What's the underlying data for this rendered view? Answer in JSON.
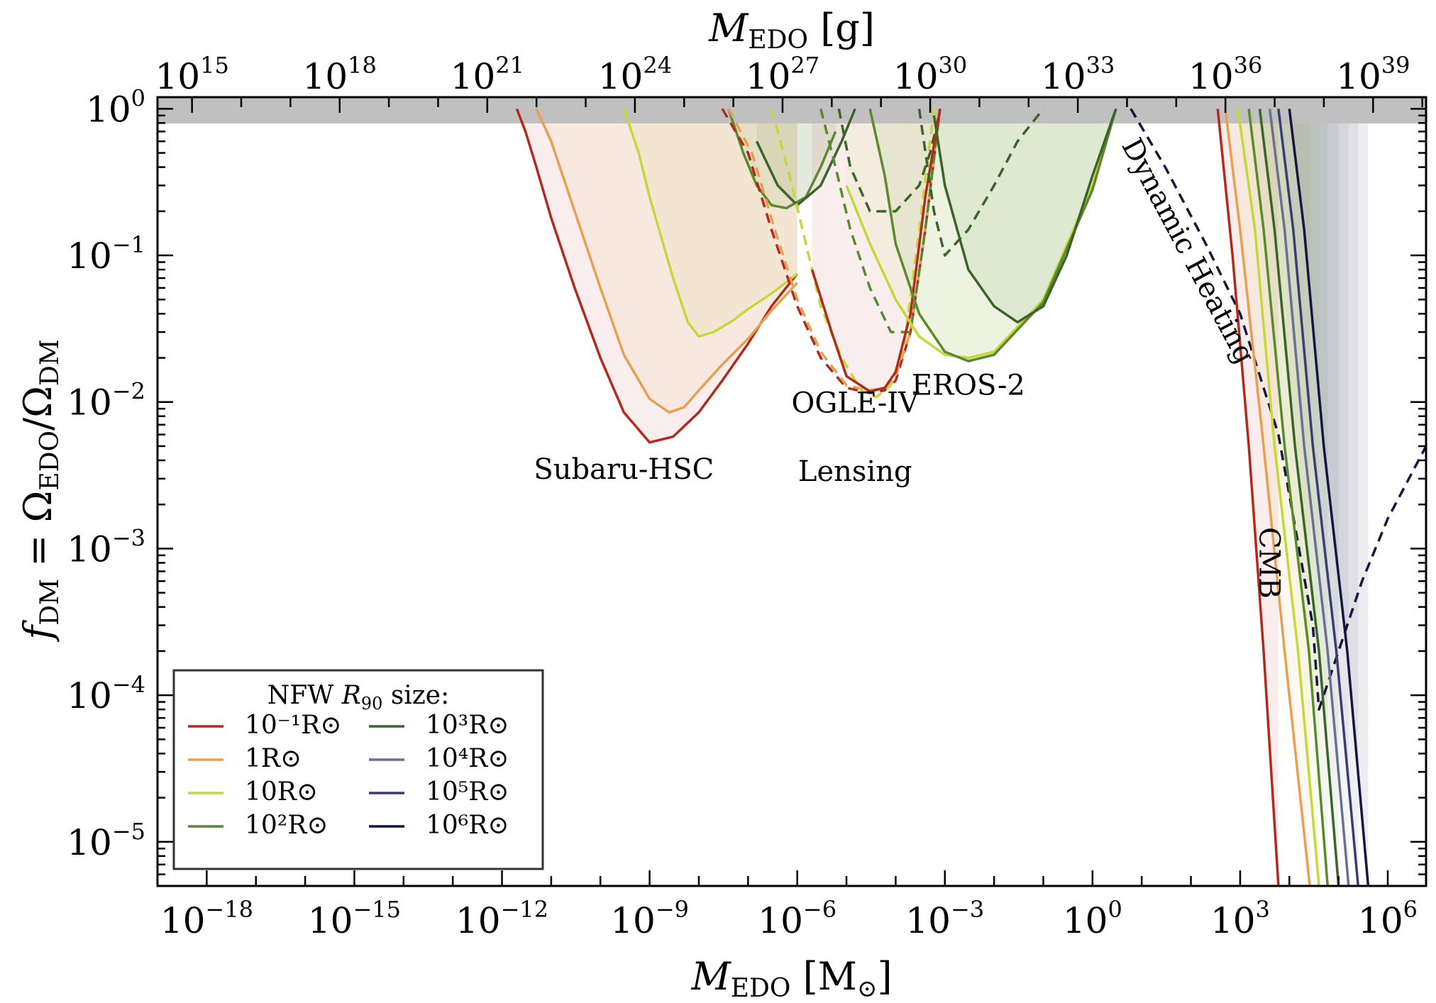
{
  "chart_data": {
    "type": "line",
    "title": "",
    "xlabel": "M_EDO [M_⊙]",
    "ylabel": "f_DM = Ω_EDO/Ω_DM",
    "top_xlabel": "M_EDO [g]",
    "xscale": "log",
    "yscale": "log",
    "xlim": [
      1e-19,
      6000000.0
    ],
    "ylim": [
      5e-06,
      1.2
    ],
    "x_ticks": [
      1e-18,
      1e-15,
      1e-12,
      1e-09,
      1e-06,
      0.001,
      1,
      1000.0,
      1000000.0
    ],
    "x_tick_labels": [
      {
        "base": "10",
        "exp": "−18"
      },
      {
        "base": "10",
        "exp": "−15"
      },
      {
        "base": "10",
        "exp": "−12"
      },
      {
        "base": "10",
        "exp": "−9"
      },
      {
        "base": "10",
        "exp": "−6"
      },
      {
        "base": "10",
        "exp": "−3"
      },
      {
        "base": "10",
        "exp": "0"
      },
      {
        "base": "10",
        "exp": "3"
      },
      {
        "base": "10",
        "exp": "6"
      }
    ],
    "top_x_ticks_grams": [
      1000000000000000.0,
      1e+18,
      1e+21,
      1e+24,
      1e+27,
      1e+30,
      1e+33,
      1e+36,
      1e+39
    ],
    "top_x_tick_labels": [
      {
        "base": "10",
        "exp": "15"
      },
      {
        "base": "10",
        "exp": "18"
      },
      {
        "base": "10",
        "exp": "21"
      },
      {
        "base": "10",
        "exp": "24"
      },
      {
        "base": "10",
        "exp": "27"
      },
      {
        "base": "10",
        "exp": "30"
      },
      {
        "base": "10",
        "exp": "33"
      },
      {
        "base": "10",
        "exp": "36"
      },
      {
        "base": "10",
        "exp": "39"
      }
    ],
    "y_ticks": [
      1e-05,
      0.0001,
      0.001,
      0.01,
      0.1,
      1
    ],
    "y_tick_labels": [
      {
        "base": "10",
        "exp": "−5"
      },
      {
        "base": "10",
        "exp": "−4"
      },
      {
        "base": "10",
        "exp": "−3"
      },
      {
        "base": "10",
        "exp": "−2"
      },
      {
        "base": "10",
        "exp": "−1"
      },
      {
        "base": "10",
        "exp": "0"
      }
    ],
    "grid": false,
    "legend_position": "bottom-left",
    "legend": {
      "title": "NFW R90 size:",
      "entries": [
        {
          "label": "10⁻¹R⊙",
          "color": "#b22a1c"
        },
        {
          "label": "1R⊙",
          "color": "#e8a050"
        },
        {
          "label": "10R⊙",
          "color": "#c5d83a"
        },
        {
          "label": "10²R⊙",
          "color": "#5a8a2c"
        },
        {
          "label": "10³R⊙",
          "color": "#3c6428"
        },
        {
          "label": "10⁴R⊙",
          "color": "#6a7090"
        },
        {
          "label": "10⁵R⊙",
          "color": "#3a3e70"
        },
        {
          "label": "10⁶R⊙",
          "color": "#151540"
        }
      ]
    },
    "annotations": [
      {
        "text": "Subaru-HSC",
        "x": 3e-10,
        "y": 0.003
      },
      {
        "text": "OGLE-IV",
        "x": 1.5e-05,
        "y": 0.0085
      },
      {
        "text": "Lensing",
        "x": 1.5e-05,
        "y": 0.0029
      },
      {
        "text": "EROS-2",
        "x": 0.003,
        "y": 0.0112
      },
      {
        "text": "Dynamic Heating",
        "x": 60,
        "y": 0.1,
        "rotation": 62
      },
      {
        "text": "CMB",
        "x": 2500.0,
        "y": 0.0008,
        "rotation": 90
      }
    ],
    "series": [
      {
        "name": "Subaru-HSC 10⁻¹R⊙",
        "style": "solid",
        "color": "#b22a1c",
        "x": [
          2e-12,
          3e-12,
          5e-12,
          1e-11,
          3e-11,
          1e-10,
          3e-10,
          1e-09,
          3e-09,
          1e-08,
          3e-08,
          1e-07,
          3e-07,
          1e-06
        ],
        "y": [
          1.0,
          0.7,
          0.4,
          0.18,
          0.06,
          0.02,
          0.0085,
          0.0053,
          0.0058,
          0.0085,
          0.014,
          0.025,
          0.045,
          0.075
        ]
      },
      {
        "name": "Subaru-HSC 1R⊙",
        "style": "solid",
        "color": "#e8a050",
        "x": [
          5e-12,
          1e-11,
          3e-11,
          1e-10,
          3e-10,
          1e-09,
          2.5e-09,
          5e-09,
          1e-08,
          3e-08,
          1e-07,
          3e-07,
          1e-06
        ],
        "y": [
          1.0,
          0.6,
          0.2,
          0.06,
          0.021,
          0.0105,
          0.0085,
          0.0092,
          0.012,
          0.018,
          0.027,
          0.042,
          0.065
        ]
      },
      {
        "name": "Subaru-HSC 10R⊙",
        "style": "solid",
        "color": "#c5d83a",
        "x": [
          3e-10,
          6e-10,
          1e-09,
          3e-09,
          6e-09,
          1e-08,
          2e-08,
          5e-08,
          1e-07,
          3e-07,
          1e-06
        ],
        "y": [
          1.0,
          0.5,
          0.25,
          0.07,
          0.035,
          0.028,
          0.03,
          0.036,
          0.043,
          0.055,
          0.075
        ]
      },
      {
        "name": "Subaru-HSC 10²R⊙",
        "style": "solid",
        "color": "#5a8a2c",
        "x": [
          4e-08,
          8e-08,
          1.5e-07,
          3e-07,
          6e-07,
          1.5e-06,
          3e-06,
          6e-06
        ],
        "y": [
          1.0,
          0.5,
          0.3,
          0.22,
          0.21,
          0.25,
          0.4,
          0.7
        ]
      },
      {
        "name": "Subaru-HSC 10³R⊙",
        "style": "solid",
        "color": "#3c6428",
        "x": [
          1.5e-07,
          4e-07,
          1e-06,
          3e-06,
          8e-06,
          1.5e-05
        ],
        "y": [
          0.6,
          0.3,
          0.22,
          0.3,
          0.6,
          1.0
        ]
      },
      {
        "name": "OGLE-IV 10⁻¹R⊙",
        "style": "dashed",
        "color": "#b22a1c",
        "x": [
          3e-08,
          1e-07,
          3e-07,
          1e-06,
          3e-06,
          1e-05,
          3e-05,
          6e-05,
          0.0001,
          0.0002,
          0.0004,
          0.0008
        ],
        "y": [
          1.0,
          0.5,
          0.15,
          0.045,
          0.02,
          0.0125,
          0.0115,
          0.012,
          0.014,
          0.03,
          0.15,
          1.0
        ]
      },
      {
        "name": "OGLE-IV 1R⊙",
        "style": "dashed",
        "color": "#e8a050",
        "x": [
          4e-08,
          1.2e-07,
          3.5e-07,
          1e-06,
          3e-06,
          1e-05,
          3e-05,
          6e-05,
          0.0001,
          0.0002,
          0.0004,
          0.0008
        ],
        "y": [
          1.0,
          0.5,
          0.15,
          0.05,
          0.022,
          0.013,
          0.012,
          0.0125,
          0.015,
          0.03,
          0.15,
          1.0
        ]
      },
      {
        "name": "OGLE-IV 10R⊙",
        "style": "dashed",
        "color": "#c5d83a",
        "x": [
          3e-07,
          7e-07,
          1.5e-06,
          3e-06,
          8e-06,
          2e-05,
          4e-05,
          8e-05,
          0.00015,
          0.0003,
          0.0006
        ],
        "y": [
          1.0,
          0.35,
          0.12,
          0.045,
          0.02,
          0.012,
          0.0108,
          0.013,
          0.025,
          0.15,
          1.0
        ]
      },
      {
        "name": "OGLE-IV 10²R⊙",
        "style": "dashed",
        "color": "#5a8a2c",
        "x": [
          3e-06,
          6e-06,
          1.2e-05,
          3e-05,
          8e-05,
          0.0002,
          0.0004,
          0.0008
        ],
        "y": [
          1.0,
          0.4,
          0.15,
          0.06,
          0.03,
          0.03,
          0.15,
          1.0
        ]
      },
      {
        "name": "OGLE-IV 10³R⊙",
        "style": "dashed",
        "color": "#3c6428",
        "x": [
          7e-06,
          1.2e-05,
          3e-05,
          0.0001,
          0.0003,
          0.0005,
          0.0007,
          0.0008
        ],
        "y": [
          1.0,
          0.4,
          0.2,
          0.2,
          0.3,
          0.5,
          0.8,
          1.0
        ]
      },
      {
        "name": "EROS-2 10⁻¹R⊙",
        "style": "solid",
        "color": "#b22a1c",
        "x": [
          2e-06,
          5e-06,
          1e-05,
          3e-05,
          6e-05,
          0.0001,
          0.0002,
          0.0004,
          0.0008
        ],
        "y": [
          0.08,
          0.03,
          0.015,
          0.0118,
          0.0125,
          0.016,
          0.04,
          0.25,
          1.0
        ]
      },
      {
        "name": "EROS-2 10R⊙",
        "style": "solid",
        "color": "#c5d83a",
        "x": [
          1e-05,
          3e-05,
          0.0001,
          0.0003,
          0.001,
          0.003,
          0.01,
          0.1,
          1,
          3
        ],
        "y": [
          0.3,
          0.12,
          0.05,
          0.028,
          0.021,
          0.02,
          0.022,
          0.05,
          0.3,
          1.0
        ]
      },
      {
        "name": "EROS-2 10²R⊙",
        "style": "solid",
        "color": "#5a8a2c",
        "x": [
          3e-05,
          6e-05,
          0.0001,
          0.0003,
          0.001,
          0.003,
          0.01,
          0.1,
          1,
          3
        ],
        "y": [
          1.0,
          0.35,
          0.12,
          0.04,
          0.022,
          0.019,
          0.021,
          0.048,
          0.28,
          1.0
        ]
      },
      {
        "name": "EROS-2 10³R⊙",
        "style": "solid",
        "color": "#3c6428",
        "x": [
          0.0006,
          0.001,
          0.003,
          0.01,
          0.03,
          0.1,
          0.3,
          1,
          3
        ],
        "y": [
          0.9,
          0.3,
          0.08,
          0.045,
          0.035,
          0.045,
          0.1,
          0.35,
          1.0
        ]
      },
      {
        "name": "EROS-2 10³R⊙ dashed",
        "style": "dashed",
        "color": "#3c6428",
        "x": [
          0.0003,
          0.0006,
          0.001,
          0.003,
          0.01,
          0.03,
          0.1
        ],
        "y": [
          1.0,
          0.2,
          0.1,
          0.15,
          0.3,
          0.6,
          1.0
        ]
      },
      {
        "name": "Dynamic Heating",
        "style": "dashed",
        "color": "#151540",
        "x": [
          6,
          30,
          200,
          1000.0,
          6000.0,
          30000.0,
          40000.0,
          50000.0,
          100000.0,
          300000.0,
          1000000.0,
          6000000.0
        ],
        "y": [
          1.0,
          0.4,
          0.12,
          0.04,
          0.006,
          0.0003,
          8e-05,
          0.0001,
          0.0002,
          0.0006,
          0.0016,
          0.005
        ]
      },
      {
        "name": "CMB 10⁻¹R⊙",
        "style": "solid",
        "color": "#b22a1c",
        "x": [
          350,
          700,
          1500,
          3000,
          6000
        ],
        "y": [
          1.0,
          0.1,
          0.005,
          0.0002,
          5e-06
        ]
      },
      {
        "name": "CMB 1R⊙",
        "style": "solid",
        "color": "#e8a050",
        "x": [
          500,
          1000,
          3000,
          8000,
          26000.0
        ],
        "y": [
          1.0,
          0.15,
          0.005,
          0.0002,
          5e-06
        ]
      },
      {
        "name": "CMB 10R⊙",
        "style": "solid",
        "color": "#c5d83a",
        "x": [
          900,
          2000,
          5000,
          15000.0,
          40000.0
        ],
        "y": [
          1.0,
          0.15,
          0.005,
          0.0002,
          5e-06
        ]
      },
      {
        "name": "CMB 10²R⊙",
        "style": "solid",
        "color": "#5a8a2c",
        "x": [
          1500,
          3000,
          8000,
          25000.0,
          60000.0
        ],
        "y": [
          1.0,
          0.15,
          0.005,
          0.0002,
          5e-06
        ]
      },
      {
        "name": "CMB 10³R⊙",
        "style": "solid",
        "color": "#3c6428",
        "x": [
          2500,
          5000,
          13000.0,
          40000.0,
          100000.0
        ],
        "y": [
          1.0,
          0.15,
          0.005,
          0.0002,
          5e-06
        ]
      },
      {
        "name": "CMB 10⁴R⊙",
        "style": "solid",
        "color": "#6a7090",
        "x": [
          4000,
          8000,
          20000.0,
          60000.0,
          160000.0
        ],
        "y": [
          1.0,
          0.15,
          0.005,
          0.0002,
          5e-06
        ]
      },
      {
        "name": "CMB 10⁵R⊙",
        "style": "solid",
        "color": "#3a3e70",
        "x": [
          6000,
          12000.0,
          30000.0,
          90000.0,
          250000.0
        ],
        "y": [
          1.0,
          0.15,
          0.005,
          0.0002,
          5e-06
        ]
      },
      {
        "name": "CMB 10⁶R⊙",
        "style": "solid",
        "color": "#151540",
        "x": [
          10000.0,
          20000.0,
          50000.0,
          150000.0,
          400000.0
        ],
        "y": [
          1.0,
          0.15,
          0.005,
          0.0002,
          5e-06
        ]
      }
    ]
  }
}
